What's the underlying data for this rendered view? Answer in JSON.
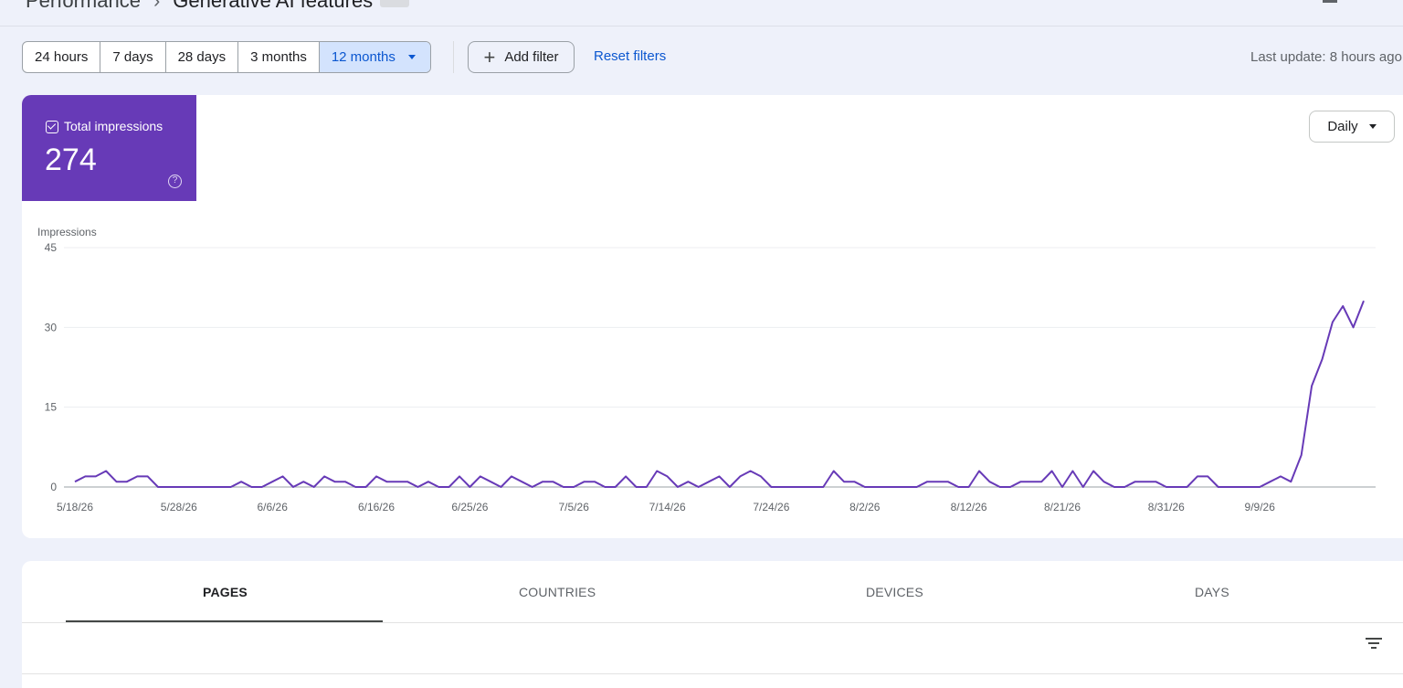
{
  "breadcrumb": {
    "parent": "Performance",
    "separator": "›",
    "current": "Generative AI features"
  },
  "filters": {
    "ranges": [
      "24 hours",
      "7 days",
      "28 days",
      "3 months",
      "12 months"
    ],
    "selected": "12 months",
    "add_filter_label": "Add filter",
    "reset_label": "Reset filters",
    "last_update": "Last update: 8 hours ago"
  },
  "metric": {
    "label": "Total impressions",
    "value": "274",
    "help_icon": "help-circle-icon",
    "color": "#673ab7"
  },
  "granularity": {
    "label": "Daily"
  },
  "chart_data": {
    "type": "line",
    "ylabel": "Impressions",
    "ylim": [
      0,
      45
    ],
    "y_ticks": [
      "45",
      "30",
      "15",
      "0"
    ],
    "x_tick_labels": [
      "5/18/26",
      "5/28/26",
      "6/6/26",
      "6/16/26",
      "6/25/26",
      "7/5/26",
      "7/14/26",
      "7/24/26",
      "8/2/26",
      "8/12/26",
      "8/21/26",
      "8/31/26",
      "9/9/26"
    ],
    "x_start": "5/18/26",
    "x_end": "9/18/26",
    "line_color": "#673ab7",
    "grid": true,
    "values": [
      1,
      2,
      2,
      3,
      1,
      1,
      2,
      2,
      0,
      0,
      0,
      0,
      0,
      0,
      0,
      0,
      1,
      0,
      0,
      1,
      2,
      0,
      1,
      0,
      2,
      1,
      1,
      0,
      0,
      2,
      1,
      1,
      1,
      0,
      1,
      0,
      0,
      2,
      0,
      2,
      1,
      0,
      2,
      1,
      0,
      1,
      1,
      0,
      0,
      1,
      1,
      0,
      0,
      2,
      0,
      0,
      3,
      2,
      0,
      1,
      0,
      1,
      2,
      0,
      2,
      3,
      2,
      0,
      0,
      0,
      0,
      0,
      0,
      3,
      1,
      1,
      0,
      0,
      0,
      0,
      0,
      0,
      1,
      1,
      1,
      0,
      0,
      3,
      1,
      0,
      0,
      1,
      1,
      1,
      3,
      0,
      3,
      0,
      3,
      1,
      0,
      0,
      1,
      1,
      1,
      0,
      0,
      0,
      2,
      2,
      0,
      0,
      0,
      0,
      0,
      1,
      2,
      1,
      6,
      19,
      24,
      31,
      34,
      30,
      35
    ]
  },
  "tabs": [
    "PAGES",
    "COUNTRIES",
    "DEVICES",
    "DAYS"
  ],
  "active_tab": "PAGES"
}
